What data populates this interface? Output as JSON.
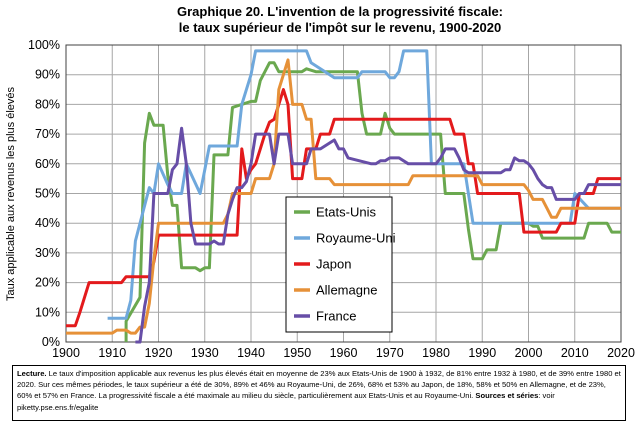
{
  "title": {
    "line1": "Graphique 20. L'invention de la progressivité fiscale:",
    "line2": "le taux supérieur de l'impôt sur le revenu, 1900-2020"
  },
  "chart_data": {
    "type": "line",
    "ylabel": "Taux applicable aux revenus les plus élevés",
    "xlim": [
      1900,
      2020
    ],
    "ylim": [
      0,
      100
    ],
    "x_ticks": [
      1900,
      1910,
      1920,
      1930,
      1940,
      1950,
      1960,
      1970,
      1980,
      1990,
      2000,
      2010,
      2020
    ],
    "y_ticks": [
      0,
      10,
      20,
      30,
      40,
      50,
      60,
      70,
      80,
      90,
      100
    ],
    "y_tick_labels": [
      "0%",
      "10%",
      "20%",
      "30%",
      "40%",
      "50%",
      "60%",
      "70%",
      "80%",
      "90%",
      "100%"
    ],
    "grid": true,
    "legend_position": "center",
    "series": [
      {
        "name": "Etats-Unis",
        "color": "#6aa84f",
        "points": [
          [
            1913,
            0
          ],
          [
            1913,
            7
          ],
          [
            1916,
            15
          ],
          [
            1917,
            67
          ],
          [
            1918,
            77
          ],
          [
            1919,
            73
          ],
          [
            1921,
            73
          ],
          [
            1922,
            56
          ],
          [
            1923,
            46
          ],
          [
            1924,
            46
          ],
          [
            1925,
            25
          ],
          [
            1928,
            25
          ],
          [
            1929,
            24
          ],
          [
            1930,
            25
          ],
          [
            1931,
            25
          ],
          [
            1932,
            63
          ],
          [
            1935,
            63
          ],
          [
            1936,
            79
          ],
          [
            1940,
            81
          ],
          [
            1941,
            81
          ],
          [
            1942,
            88
          ],
          [
            1944,
            94
          ],
          [
            1945,
            94
          ],
          [
            1946,
            91
          ],
          [
            1950,
            91
          ],
          [
            1951,
            91
          ],
          [
            1952,
            92
          ],
          [
            1954,
            91
          ],
          [
            1963,
            91
          ],
          [
            1964,
            77
          ],
          [
            1965,
            70
          ],
          [
            1968,
            70
          ],
          [
            1969,
            77
          ],
          [
            1970,
            72
          ],
          [
            1971,
            70
          ],
          [
            1981,
            70
          ],
          [
            1982,
            50
          ],
          [
            1986,
            50
          ],
          [
            1987,
            38
          ],
          [
            1988,
            28
          ],
          [
            1990,
            28
          ],
          [
            1991,
            31
          ],
          [
            1993,
            31
          ],
          [
            1994,
            40
          ],
          [
            2000,
            40
          ],
          [
            2001,
            39
          ],
          [
            2002,
            39
          ],
          [
            2003,
            35
          ],
          [
            2012,
            35
          ],
          [
            2013,
            40
          ],
          [
            2017,
            40
          ],
          [
            2018,
            37
          ],
          [
            2020,
            37
          ]
        ]
      },
      {
        "name": "Royaume-Uni",
        "color": "#6fa8dc",
        "points": [
          [
            1909,
            8
          ],
          [
            1910,
            8
          ],
          [
            1913,
            8
          ],
          [
            1914,
            14
          ],
          [
            1915,
            34
          ],
          [
            1918,
            52
          ],
          [
            1919,
            50
          ],
          [
            1920,
            60
          ],
          [
            1922,
            53
          ],
          [
            1923,
            50
          ],
          [
            1925,
            50
          ],
          [
            1926,
            60
          ],
          [
            1929,
            50
          ],
          [
            1930,
            58
          ],
          [
            1931,
            66
          ],
          [
            1932,
            66
          ],
          [
            1937,
            66
          ],
          [
            1938,
            80
          ],
          [
            1940,
            90
          ],
          [
            1941,
            98
          ],
          [
            1952,
            98
          ],
          [
            1953,
            94
          ],
          [
            1958,
            89
          ],
          [
            1959,
            89
          ],
          [
            1963,
            89
          ],
          [
            1964,
            91
          ],
          [
            1968,
            91
          ],
          [
            1969,
            91
          ],
          [
            1970,
            89
          ],
          [
            1971,
            89
          ],
          [
            1972,
            91
          ],
          [
            1973,
            98
          ],
          [
            1978,
            98
          ],
          [
            1979,
            60
          ],
          [
            1985,
            60
          ],
          [
            1986,
            60
          ],
          [
            1988,
            40
          ],
          [
            2009,
            40
          ],
          [
            2010,
            50
          ],
          [
            2013,
            45
          ],
          [
            2020,
            45
          ]
        ]
      },
      {
        "name": "Japon",
        "color": "#e31a1c",
        "points": [
          [
            1900,
            5.5
          ],
          [
            1902,
            5.5
          ],
          [
            1903,
            10
          ],
          [
            1904,
            15
          ],
          [
            1905,
            20
          ],
          [
            1912,
            20
          ],
          [
            1913,
            22
          ],
          [
            1918,
            22
          ],
          [
            1919,
            27
          ],
          [
            1920,
            36
          ],
          [
            1937,
            36
          ],
          [
            1938,
            65
          ],
          [
            1939,
            55
          ],
          [
            1940,
            58
          ],
          [
            1941,
            60
          ],
          [
            1942,
            65
          ],
          [
            1943,
            70
          ],
          [
            1944,
            74
          ],
          [
            1945,
            75
          ],
          [
            1946,
            80
          ],
          [
            1947,
            85
          ],
          [
            1948,
            80
          ],
          [
            1949,
            55
          ],
          [
            1951,
            55
          ],
          [
            1952,
            65
          ],
          [
            1953,
            65
          ],
          [
            1954,
            65
          ],
          [
            1955,
            70
          ],
          [
            1957,
            70
          ],
          [
            1958,
            75
          ],
          [
            1983,
            75
          ],
          [
            1984,
            70
          ],
          [
            1986,
            70
          ],
          [
            1987,
            60
          ],
          [
            1988,
            60
          ],
          [
            1989,
            50
          ],
          [
            1998,
            50
          ],
          [
            1999,
            37
          ],
          [
            2006,
            37
          ],
          [
            2007,
            40
          ],
          [
            2010,
            40
          ],
          [
            2011,
            50
          ],
          [
            2014,
            50
          ],
          [
            2015,
            55
          ],
          [
            2020,
            55
          ]
        ]
      },
      {
        "name": "Allemagne",
        "color": "#e69138",
        "points": [
          [
            1900,
            3
          ],
          [
            1910,
            3
          ],
          [
            1911,
            4
          ],
          [
            1913,
            4
          ],
          [
            1914,
            3
          ],
          [
            1915,
            3
          ],
          [
            1916,
            5
          ],
          [
            1917,
            5
          ],
          [
            1918,
            13
          ],
          [
            1919,
            28
          ],
          [
            1920,
            40
          ],
          [
            1925,
            40
          ],
          [
            1927,
            40
          ],
          [
            1930,
            40
          ],
          [
            1934,
            40
          ],
          [
            1935,
            43
          ],
          [
            1936,
            50
          ],
          [
            1939,
            50
          ],
          [
            1940,
            50
          ],
          [
            1941,
            55
          ],
          [
            1944,
            55
          ],
          [
            1945,
            60
          ],
          [
            1946,
            85
          ],
          [
            1947,
            90
          ],
          [
            1948,
            95
          ],
          [
            1949,
            80
          ],
          [
            1951,
            80
          ],
          [
            1952,
            75
          ],
          [
            1953,
            75
          ],
          [
            1954,
            55
          ],
          [
            1957,
            55
          ],
          [
            1958,
            53
          ],
          [
            1974,
            53
          ],
          [
            1975,
            56
          ],
          [
            1989,
            56
          ],
          [
            1990,
            53
          ],
          [
            1999,
            53
          ],
          [
            2000,
            51
          ],
          [
            2001,
            48
          ],
          [
            2003,
            48
          ],
          [
            2004,
            45
          ],
          [
            2005,
            42
          ],
          [
            2006,
            42
          ],
          [
            2007,
            45
          ],
          [
            2020,
            45
          ]
        ]
      },
      {
        "name": "France",
        "color": "#674ea7",
        "points": [
          [
            1915,
            0
          ],
          [
            1916,
            0
          ],
          [
            1917,
            12
          ],
          [
            1918,
            20
          ],
          [
            1919,
            50
          ],
          [
            1920,
            50
          ],
          [
            1921,
            50
          ],
          [
            1922,
            50
          ],
          [
            1923,
            58
          ],
          [
            1924,
            60
          ],
          [
            1925,
            72
          ],
          [
            1926,
            60
          ],
          [
            1927,
            40
          ],
          [
            1928,
            33
          ],
          [
            1929,
            33
          ],
          [
            1931,
            33
          ],
          [
            1932,
            34
          ],
          [
            1933,
            33
          ],
          [
            1934,
            33
          ],
          [
            1935,
            43
          ],
          [
            1936,
            48
          ],
          [
            1937,
            52
          ],
          [
            1938,
            52
          ],
          [
            1939,
            54
          ],
          [
            1940,
            60
          ],
          [
            1941,
            70
          ],
          [
            1942,
            70
          ],
          [
            1944,
            70
          ],
          [
            1945,
            60
          ],
          [
            1946,
            70
          ],
          [
            1948,
            70
          ],
          [
            1949,
            60
          ],
          [
            1951,
            60
          ],
          [
            1952,
            60
          ],
          [
            1953,
            65
          ],
          [
            1955,
            65
          ],
          [
            1958,
            68
          ],
          [
            1959,
            65
          ],
          [
            1960,
            65
          ],
          [
            1961,
            62
          ],
          [
            1966,
            60
          ],
          [
            1967,
            60
          ],
          [
            1968,
            61
          ],
          [
            1969,
            61
          ],
          [
            1970,
            62
          ],
          [
            1972,
            62
          ],
          [
            1974,
            60
          ],
          [
            1975,
            60
          ],
          [
            1976,
            60
          ],
          [
            1977,
            60
          ],
          [
            1978,
            60
          ],
          [
            1979,
            60
          ],
          [
            1980,
            60
          ],
          [
            1981,
            62
          ],
          [
            1982,
            65
          ],
          [
            1983,
            65
          ],
          [
            1984,
            65
          ],
          [
            1985,
            62
          ],
          [
            1986,
            58
          ],
          [
            1987,
            57
          ],
          [
            1988,
            57
          ],
          [
            1989,
            57
          ],
          [
            1990,
            57
          ],
          [
            1991,
            57
          ],
          [
            1992,
            57
          ],
          [
            1993,
            57
          ],
          [
            1994,
            57
          ],
          [
            1995,
            58
          ],
          [
            1996,
            58
          ],
          [
            1997,
            62
          ],
          [
            1998,
            61
          ],
          [
            1999,
            61
          ],
          [
            2000,
            60
          ],
          [
            2001,
            58
          ],
          [
            2002,
            55
          ],
          [
            2003,
            53
          ],
          [
            2004,
            52
          ],
          [
            2005,
            52
          ],
          [
            2006,
            48
          ],
          [
            2007,
            48
          ],
          [
            2008,
            48
          ],
          [
            2009,
            48
          ],
          [
            2010,
            48
          ],
          [
            2011,
            50
          ],
          [
            2012,
            50
          ],
          [
            2013,
            53
          ],
          [
            2014,
            53
          ],
          [
            2015,
            53
          ],
          [
            2016,
            53
          ],
          [
            2017,
            53
          ],
          [
            2018,
            53
          ],
          [
            2019,
            53
          ],
          [
            2020,
            53
          ]
        ]
      }
    ]
  },
  "lecture": {
    "label": "Lecture.",
    "text": "Le taux d'imposition applicable aux revenus les plus élevés était en moyenne de 23% aux Etats-Unis de 1900 à 1932, de 81% entre 1932 à 1980, et de 39% entre 1980 et 2020. Sur ces mêmes périodes, le taux supérieur a été de 30%, 89% et 46% au Royaume-Uni, de 26%, 68% et 53% au Japon, de 18%, 58% et 50% en Allemagne, et de 23%, 60% et 57% en France. La progressivité fiscale a été maximale au milieu du siècle, particulièrement aux Etats-Unis et au Royaume-Uni.",
    "sources_label": "Sources et séries",
    "sources_text": ": voir piketty.pse.ens.fr/egalite"
  }
}
